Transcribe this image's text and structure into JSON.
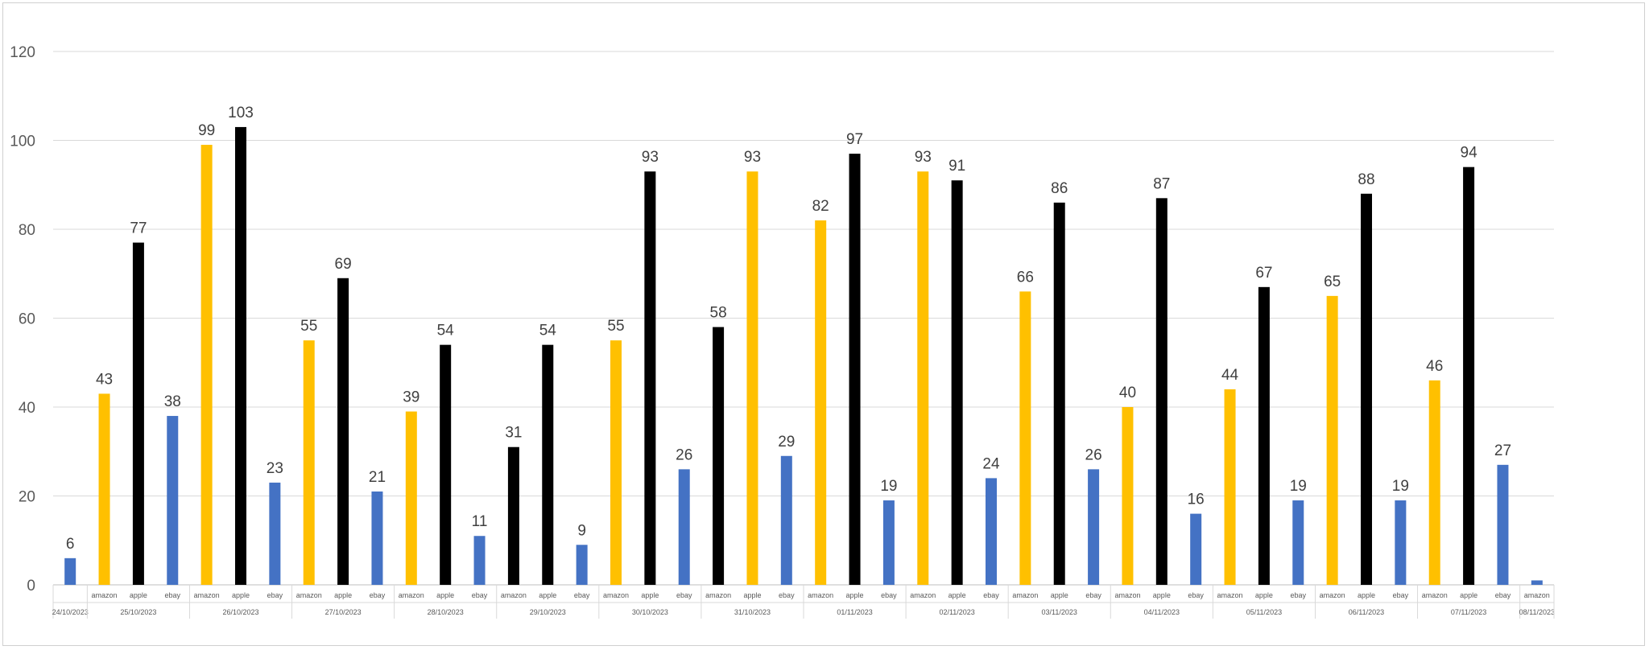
{
  "chart_data": {
    "type": "bar",
    "title": "",
    "xlabel": "",
    "ylabel": "",
    "ylim": [
      0,
      120
    ],
    "yticks": [
      0,
      20,
      40,
      60,
      80,
      100,
      120
    ],
    "grid": true,
    "legend": "none",
    "colors": {
      "amazon": "#FFC000",
      "apple": "#000000",
      "ebay": "#4472C4"
    },
    "groups": [
      {
        "date": "24/10/2023",
        "bars": [
          {
            "category": "",
            "series": "ebay",
            "value": 6
          }
        ]
      },
      {
        "date": "25/10/2023",
        "bars": [
          {
            "category": "amazon",
            "series": "amazon",
            "value": 43
          },
          {
            "category": "apple",
            "series": "apple",
            "value": 77
          },
          {
            "category": "ebay",
            "series": "ebay",
            "value": 38
          }
        ]
      },
      {
        "date": "26/10/2023",
        "bars": [
          {
            "category": "amazon",
            "series": "amazon",
            "value": 99
          },
          {
            "category": "apple",
            "series": "apple",
            "value": 103
          },
          {
            "category": "ebay",
            "series": "ebay",
            "value": 23
          }
        ]
      },
      {
        "date": "27/10/2023",
        "bars": [
          {
            "category": "amazon",
            "series": "amazon",
            "value": 55
          },
          {
            "category": "apple",
            "series": "apple",
            "value": 69
          },
          {
            "category": "ebay",
            "series": "ebay",
            "value": 21
          }
        ]
      },
      {
        "date": "28/10/2023",
        "bars": [
          {
            "category": "amazon",
            "series": "amazon",
            "value": 39
          },
          {
            "category": "apple",
            "series": "apple",
            "value": 54
          },
          {
            "category": "ebay",
            "series": "ebay",
            "value": 11
          }
        ]
      },
      {
        "date": "29/10/2023",
        "bars": [
          {
            "category": "amazon",
            "series": "apple",
            "value": 31
          },
          {
            "category": "apple",
            "series": "apple",
            "value": 54
          },
          {
            "category": "ebay",
            "series": "ebay",
            "value": 9
          }
        ]
      },
      {
        "date": "30/10/2023",
        "bars": [
          {
            "category": "amazon",
            "series": "amazon",
            "value": 55
          },
          {
            "category": "apple",
            "series": "apple",
            "value": 93
          },
          {
            "category": "ebay",
            "series": "ebay",
            "value": 26
          }
        ]
      },
      {
        "date": "31/10/2023",
        "bars": [
          {
            "category": "amazon",
            "series": "apple",
            "value": 58
          },
          {
            "category": "apple",
            "series": "amazon",
            "value": 93
          },
          {
            "category": "ebay",
            "series": "ebay",
            "value": 29
          }
        ]
      },
      {
        "date": "01/11/2023",
        "bars": [
          {
            "category": "amazon",
            "series": "amazon",
            "value": 82
          },
          {
            "category": "apple",
            "series": "apple",
            "value": 97
          },
          {
            "category": "ebay",
            "series": "ebay",
            "value": 19
          }
        ]
      },
      {
        "date": "02/11/2023",
        "bars": [
          {
            "category": "amazon",
            "series": "amazon",
            "value": 93
          },
          {
            "category": "apple",
            "series": "apple",
            "value": 91
          },
          {
            "category": "ebay",
            "series": "ebay",
            "value": 24
          }
        ]
      },
      {
        "date": "03/11/2023",
        "bars": [
          {
            "category": "amazon",
            "series": "amazon",
            "value": 66
          },
          {
            "category": "apple",
            "series": "apple",
            "value": 86
          },
          {
            "category": "ebay",
            "series": "ebay",
            "value": 26
          }
        ]
      },
      {
        "date": "04/11/2023",
        "bars": [
          {
            "category": "amazon",
            "series": "amazon",
            "value": 40
          },
          {
            "category": "apple",
            "series": "apple",
            "value": 87
          },
          {
            "category": "ebay",
            "series": "ebay",
            "value": 16
          }
        ]
      },
      {
        "date": "05/11/2023",
        "bars": [
          {
            "category": "amazon",
            "series": "amazon",
            "value": 44
          },
          {
            "category": "apple",
            "series": "apple",
            "value": 67
          },
          {
            "category": "ebay",
            "series": "ebay",
            "value": 19
          }
        ]
      },
      {
        "date": "06/11/2023",
        "bars": [
          {
            "category": "amazon",
            "series": "amazon",
            "value": 65
          },
          {
            "category": "apple",
            "series": "apple",
            "value": 88
          },
          {
            "category": "ebay",
            "series": "ebay",
            "value": 19
          }
        ]
      },
      {
        "date": "07/11/2023",
        "bars": [
          {
            "category": "amazon",
            "series": "amazon",
            "value": 46
          },
          {
            "category": "apple",
            "series": "apple",
            "value": 94
          },
          {
            "category": "ebay",
            "series": "ebay",
            "value": 27
          }
        ]
      },
      {
        "date": "08/11/2023",
        "bars": [
          {
            "category": "amazon",
            "series": "ebay",
            "value": 1
          }
        ]
      }
    ]
  }
}
